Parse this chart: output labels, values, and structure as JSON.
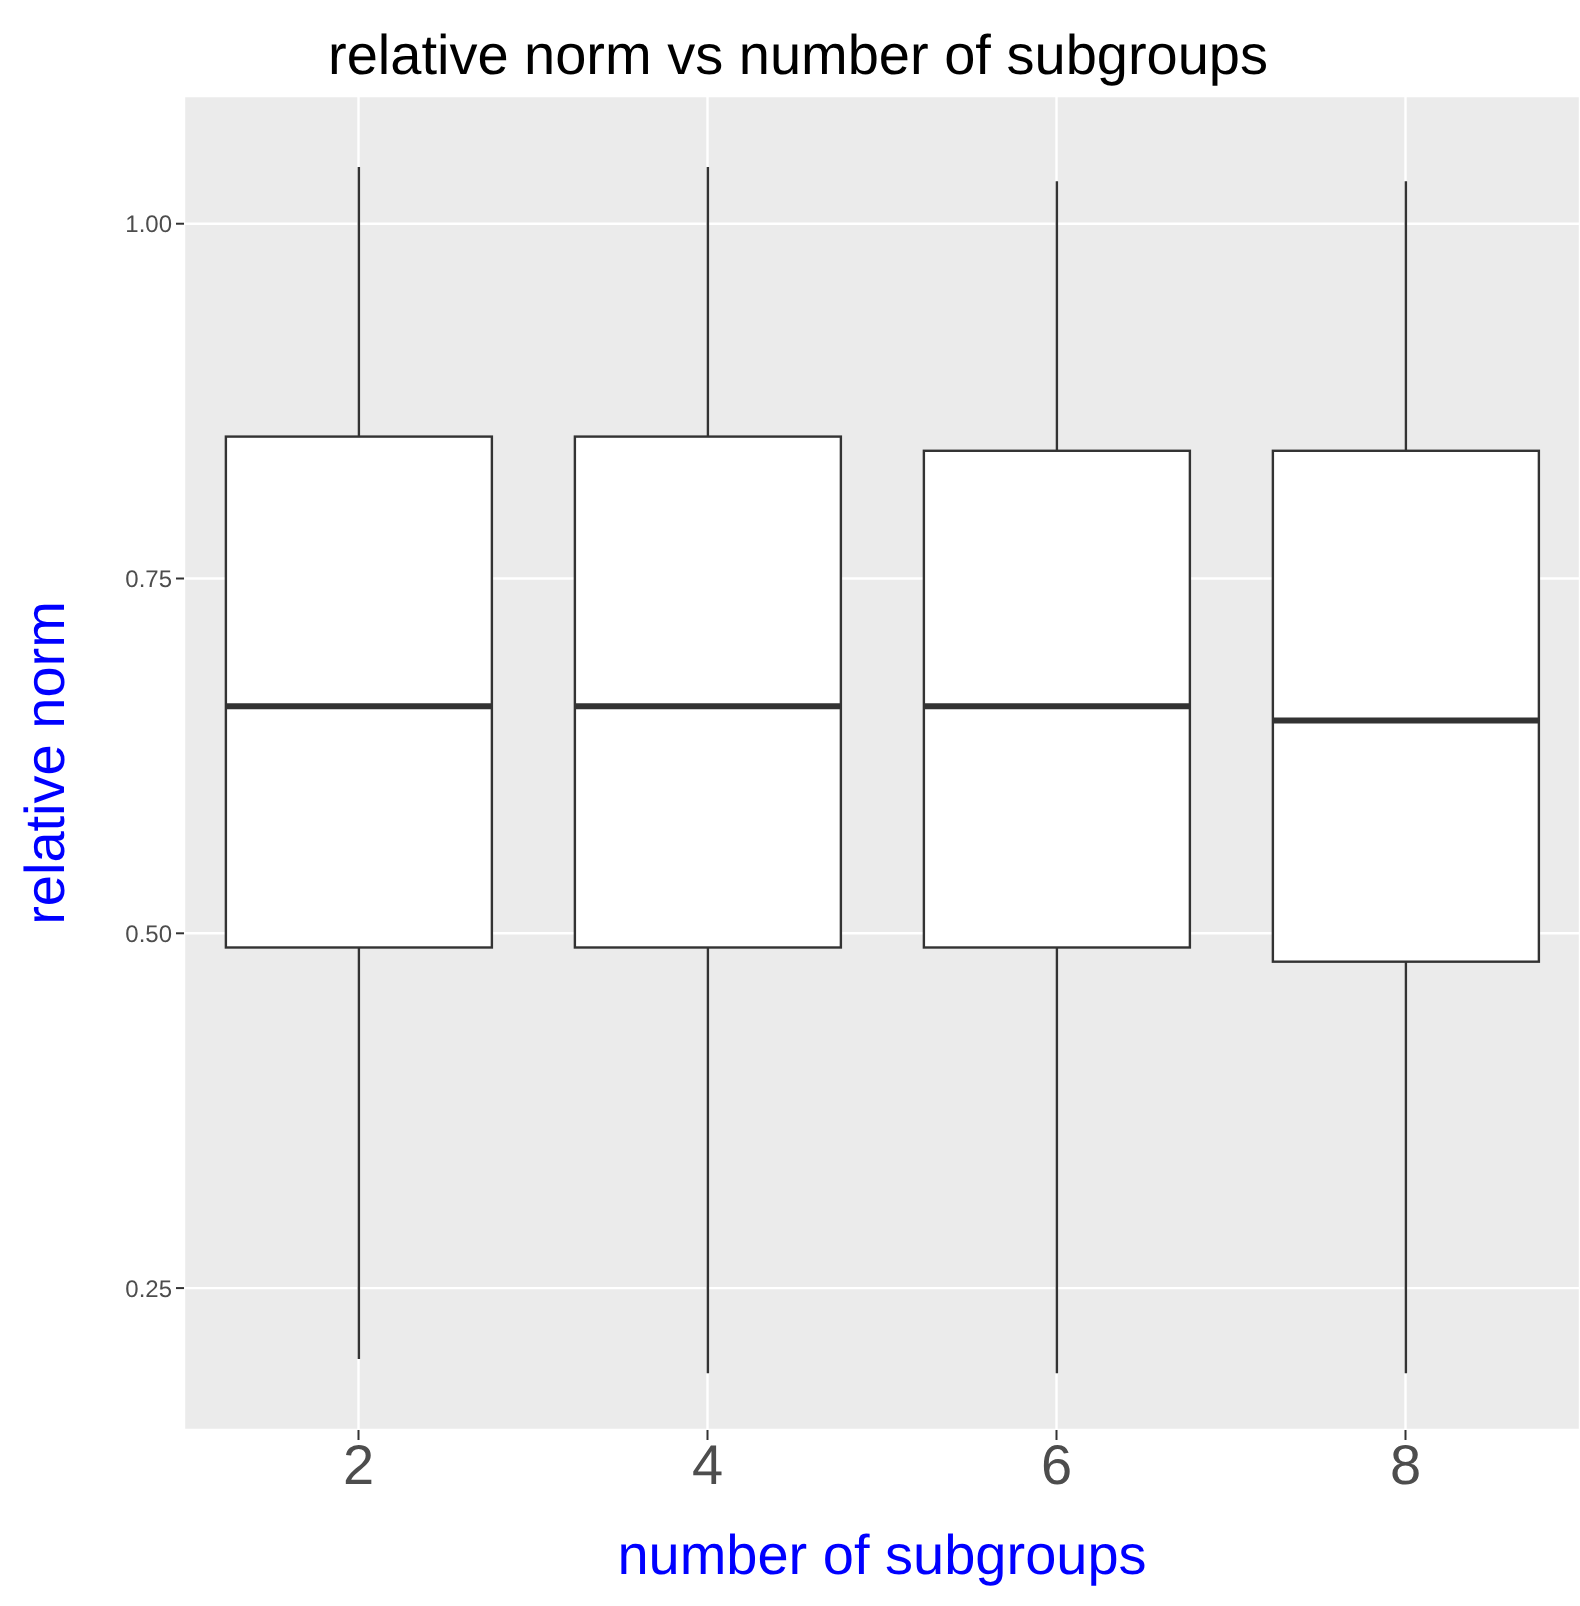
{
  "chart_data": {
    "type": "box",
    "title": "relative norm vs number of subgroups",
    "xlabel": "number of subgroups",
    "ylabel": "relative norm",
    "categories": [
      "2",
      "4",
      "6",
      "8"
    ],
    "boxes": [
      {
        "low": 0.2,
        "q1": 0.49,
        "median": 0.66,
        "q3": 0.85,
        "high": 1.04
      },
      {
        "low": 0.19,
        "q1": 0.49,
        "median": 0.66,
        "q3": 0.85,
        "high": 1.04
      },
      {
        "low": 0.19,
        "q1": 0.49,
        "median": 0.66,
        "q3": 0.84,
        "high": 1.03
      },
      {
        "low": 0.19,
        "q1": 0.48,
        "median": 0.65,
        "q3": 0.84,
        "high": 1.03
      }
    ],
    "ylim": [
      0.15,
      1.09
    ],
    "yticks": [
      {
        "value": 0.25,
        "label": "0.25"
      },
      {
        "value": 0.5,
        "label": "0.50"
      },
      {
        "value": 0.75,
        "label": "0.75"
      },
      {
        "value": 1,
        "label": "1.00"
      }
    ],
    "grid": true
  }
}
